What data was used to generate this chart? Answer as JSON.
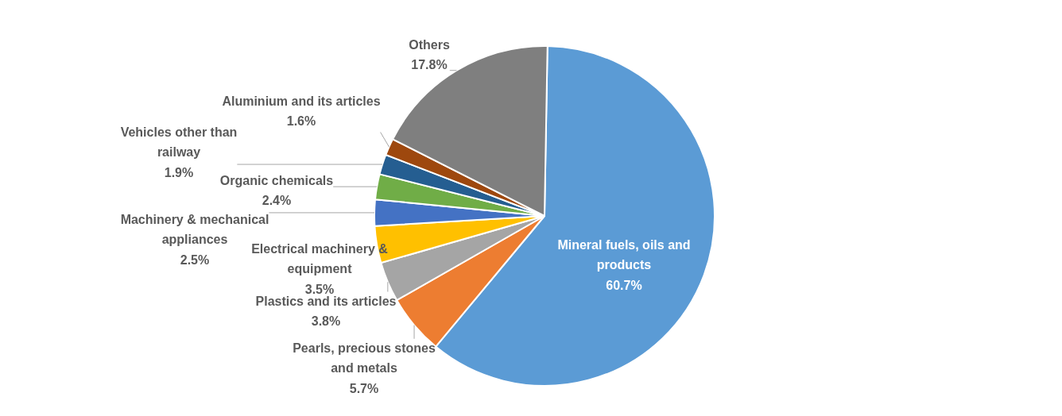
{
  "chart_data": {
    "type": "pie",
    "categories": [
      "Mineral fuels, oils and products",
      "Pearls, precious stones and metals",
      "Plastics and its articles",
      "Electrical machinery & equipment",
      "Machinery & mechanical appliances",
      "Organic chemicals",
      "Vehicles other than railway",
      "Aluminium and its articles",
      "Others"
    ],
    "values": [
      60.7,
      5.7,
      3.8,
      3.5,
      2.5,
      2.4,
      1.9,
      1.6,
      17.8
    ],
    "colors": [
      "#5b9bd5",
      "#ed7d31",
      "#a5a5a5",
      "#ffc000",
      "#4472c4",
      "#70ad47",
      "#255e91",
      "#9e480e",
      "#7f7f7f"
    ],
    "value_labels": [
      "60.7%",
      "5.7%",
      "3.8%",
      "3.5%",
      "2.5%",
      "2.4%",
      "1.9%",
      "1.6%",
      "17.8%"
    ],
    "legend": false
  }
}
